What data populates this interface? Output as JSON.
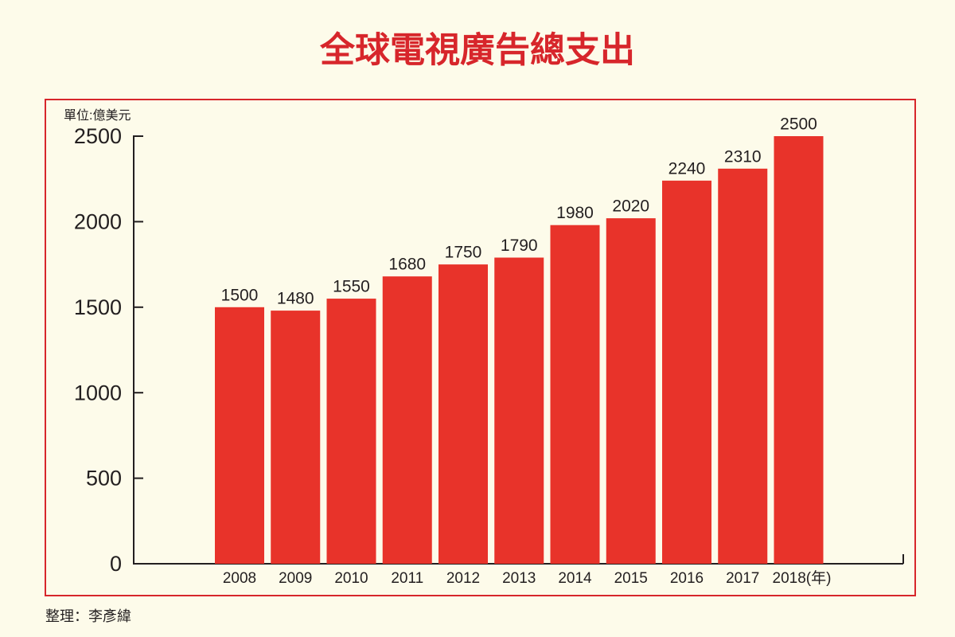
{
  "chart_data": {
    "type": "bar",
    "title": "全球電視廣告總支出",
    "unit_label": "單位:億美元",
    "footer": "整理：李彥緯",
    "categories": [
      "2008",
      "2009",
      "2010",
      "2011",
      "2012",
      "2013",
      "2014",
      "2015",
      "2016",
      "2017",
      "2018(年)"
    ],
    "values": [
      1500,
      1480,
      1550,
      1680,
      1750,
      1790,
      1980,
      2020,
      2240,
      2310,
      2500
    ],
    "color": "#e8332a",
    "ylim": [
      0,
      2500
    ],
    "yticks": [
      0,
      500,
      1000,
      1500,
      2000,
      2500
    ],
    "grid": false
  }
}
